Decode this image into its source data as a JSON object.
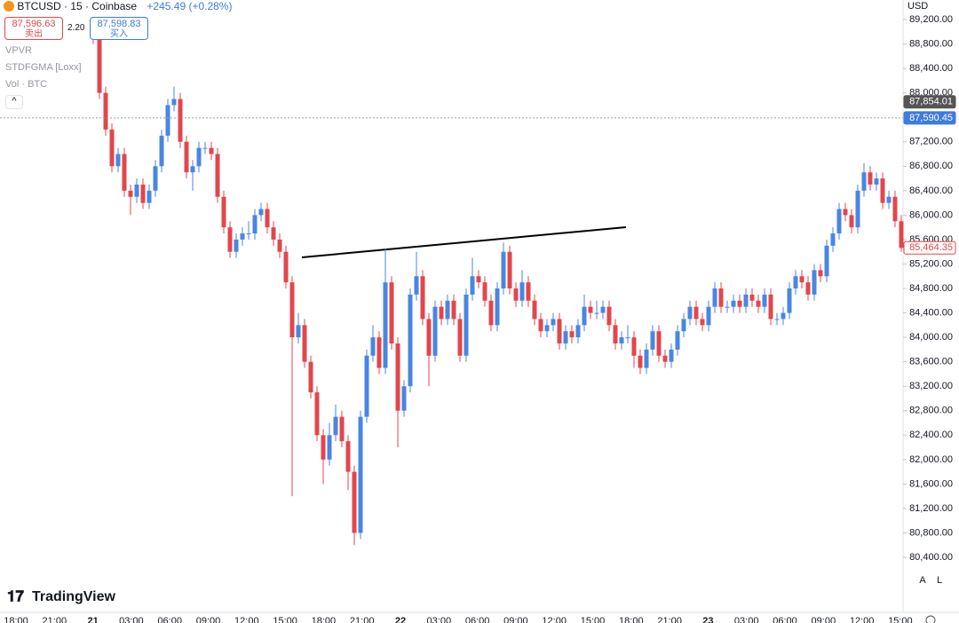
{
  "chart_data": {
    "type": "candlestick",
    "symbol": "BTCUSD · 15 · Coinbase",
    "change": "+245.49 (+0.28%)",
    "sell_price": "87,596.63",
    "sell_label": "卖出",
    "spread": "2.20",
    "buy_price": "87,598.83",
    "buy_label": "买入",
    "indicators": [
      "VPVR",
      "STDFGMA [Loxx]",
      "Vol · BTC"
    ],
    "currency": "USD",
    "brand": "TradingView",
    "scale_buttons": [
      "A",
      "L"
    ],
    "up_color": "#4a86e0",
    "down_color": "#e0474c",
    "categories": [
      "18:00",
      "21:00",
      "21",
      "03:00",
      "06:00",
      "09:00",
      "12:00",
      "15:00",
      "18:00",
      "21:00",
      "22",
      "03:00",
      "06:00",
      "09:00",
      "12:00",
      "15:00",
      "18:00",
      "21:00",
      "23",
      "03:00",
      "06:00",
      "09:00",
      "12:00",
      "15:00"
    ],
    "ylim": [
      79500,
      89520
    ],
    "yticks": [
      {
        "value": 80400,
        "label": "80,400.00"
      },
      {
        "value": 80800,
        "label": "80,800.00"
      },
      {
        "value": 81200,
        "label": "81,200.00"
      },
      {
        "value": 81600,
        "label": "81,600.00"
      },
      {
        "value": 82000,
        "label": "82,000.00"
      },
      {
        "value": 82400,
        "label": "82,400.00"
      },
      {
        "value": 82800,
        "label": "82,800.00"
      },
      {
        "value": 83200,
        "label": "83,200.00"
      },
      {
        "value": 83600,
        "label": "83,600.00"
      },
      {
        "value": 84000,
        "label": "84,000.00"
      },
      {
        "value": 84400,
        "label": "84,400.00"
      },
      {
        "value": 84800,
        "label": "84,800.00"
      },
      {
        "value": 85200,
        "label": "85,200.00"
      },
      {
        "value": 85600,
        "label": "85,600.00"
      },
      {
        "value": 86000,
        "label": "86,000.00"
      },
      {
        "value": 86400,
        "label": "86,400.00"
      },
      {
        "value": 86800,
        "label": "86,800.00"
      },
      {
        "value": 87200,
        "label": "87,200.00"
      },
      {
        "value": 88000,
        "label": "88,000.00"
      },
      {
        "value": 88400,
        "label": "88,400.00"
      },
      {
        "value": 88800,
        "label": "88,800.00"
      },
      {
        "value": 89200,
        "label": "89,200.00"
      }
    ],
    "price_markers": [
      {
        "value": 87854.01,
        "label": "87,854.01",
        "color": "#555555"
      },
      {
        "value": 87590.45,
        "label": "87,590.45",
        "color": "#3d7be0"
      },
      {
        "value": 85464.35,
        "label": "85,464.35",
        "color": "#e0474c"
      }
    ],
    "candles": [
      [
        89100,
        89200,
        88800,
        88900
      ],
      [
        88900,
        89000,
        87900,
        88000
      ],
      [
        88000,
        88100,
        87300,
        87400
      ],
      [
        87400,
        87500,
        86700,
        86800
      ],
      [
        86800,
        87100,
        86700,
        87000
      ],
      [
        87000,
        87100,
        86300,
        86400
      ],
      [
        86400,
        86500,
        86000,
        86300
      ],
      [
        86300,
        86600,
        86200,
        86500
      ],
      [
        86500,
        86600,
        86100,
        86200
      ],
      [
        86200,
        86500,
        86100,
        86400
      ],
      [
        86400,
        86900,
        86300,
        86800
      ],
      [
        86800,
        87400,
        86700,
        87300
      ],
      [
        87300,
        87900,
        87200,
        87800
      ],
      [
        87800,
        88100,
        87700,
        87900
      ],
      [
        87900,
        88000,
        87100,
        87200
      ],
      [
        87200,
        87300,
        86600,
        86700
      ],
      [
        86700,
        86900,
        86400,
        86800
      ],
      [
        86800,
        87200,
        86700,
        87100
      ],
      [
        87100,
        87200,
        87000,
        87100
      ],
      [
        87100,
        87200,
        86900,
        87000
      ],
      [
        87000,
        87100,
        86200,
        86300
      ],
      [
        86300,
        86400,
        85700,
        85800
      ],
      [
        85800,
        85900,
        85300,
        85400
      ],
      [
        85400,
        85700,
        85300,
        85600
      ],
      [
        85600,
        85800,
        85500,
        85700
      ],
      [
        85700,
        85900,
        85600,
        85700
      ],
      [
        85700,
        86100,
        85600,
        86000
      ],
      [
        86000,
        86200,
        85900,
        86100
      ],
      [
        86100,
        86200,
        85700,
        85800
      ],
      [
        85800,
        85900,
        85500,
        85600
      ],
      [
        85600,
        85700,
        85300,
        85400
      ],
      [
        85400,
        85500,
        84800,
        84900
      ],
      [
        84900,
        85000,
        81400,
        84000
      ],
      [
        84000,
        84400,
        83900,
        84200
      ],
      [
        84200,
        84300,
        83500,
        83600
      ],
      [
        83600,
        83700,
        83000,
        83100
      ],
      [
        83100,
        83200,
        82300,
        82400
      ],
      [
        82400,
        82500,
        81600,
        82000
      ],
      [
        82000,
        82600,
        81900,
        82400
      ],
      [
        82400,
        82900,
        82300,
        82700
      ],
      [
        82700,
        82800,
        82200,
        82300
      ],
      [
        82300,
        82400,
        81500,
        81800
      ],
      [
        81800,
        81900,
        80600,
        80800
      ],
      [
        80800,
        82800,
        80700,
        82700
      ],
      [
        82700,
        83800,
        82600,
        83700
      ],
      [
        83700,
        84200,
        83600,
        84000
      ],
      [
        84000,
        84100,
        83400,
        83500
      ],
      [
        83500,
        85450,
        83400,
        84900
      ],
      [
        84900,
        85000,
        83800,
        83900
      ],
      [
        83900,
        84000,
        82200,
        82800
      ],
      [
        82800,
        83300,
        82700,
        83200
      ],
      [
        83200,
        84800,
        83100,
        84700
      ],
      [
        84700,
        85400,
        84600,
        85000
      ],
      [
        85000,
        85100,
        84200,
        84300
      ],
      [
        84300,
        84400,
        83200,
        83700
      ],
      [
        83700,
        84600,
        83600,
        84500
      ],
      [
        84500,
        84600,
        84200,
        84300
      ],
      [
        84300,
        84700,
        84200,
        84600
      ],
      [
        84600,
        84700,
        84200,
        84300
      ],
      [
        84300,
        84400,
        83600,
        83700
      ],
      [
        83700,
        84800,
        83600,
        84700
      ],
      [
        84700,
        85300,
        84600,
        85000
      ],
      [
        85000,
        85100,
        84800,
        84900
      ],
      [
        84900,
        85000,
        84500,
        84600
      ],
      [
        84600,
        84700,
        84100,
        84200
      ],
      [
        84200,
        84900,
        84100,
        84800
      ],
      [
        84800,
        85550,
        84700,
        85400
      ],
      [
        85400,
        85500,
        84700,
        84800
      ],
      [
        84800,
        84900,
        84500,
        84600
      ],
      [
        84600,
        85100,
        84500,
        84900
      ],
      [
        84900,
        85000,
        84500,
        84600
      ],
      [
        84600,
        84700,
        84200,
        84300
      ],
      [
        84300,
        84400,
        84000,
        84100
      ],
      [
        84100,
        84300,
        84000,
        84200
      ],
      [
        84200,
        84400,
        84100,
        84300
      ],
      [
        84300,
        84400,
        83800,
        83900
      ],
      [
        83900,
        84200,
        83800,
        84100
      ],
      [
        84100,
        84200,
        83900,
        84000
      ],
      [
        84000,
        84300,
        83900,
        84200
      ],
      [
        84200,
        84700,
        84100,
        84500
      ],
      [
        84500,
        84600,
        84300,
        84400
      ],
      [
        84400,
        84600,
        84300,
        84400
      ],
      [
        84400,
        84600,
        84300,
        84500
      ],
      [
        84500,
        84600,
        84100,
        84200
      ],
      [
        84200,
        84300,
        83800,
        83900
      ],
      [
        83900,
        84100,
        83800,
        84000
      ],
      [
        84000,
        84200,
        83900,
        84000
      ],
      [
        84000,
        84100,
        83500,
        83700
      ],
      [
        83700,
        83800,
        83400,
        83500
      ],
      [
        83500,
        83900,
        83400,
        83800
      ],
      [
        83800,
        84200,
        83700,
        84100
      ],
      [
        84100,
        84200,
        83600,
        83700
      ],
      [
        83700,
        83800,
        83500,
        83600
      ],
      [
        83600,
        83900,
        83500,
        83800
      ],
      [
        83800,
        84200,
        83700,
        84100
      ],
      [
        84100,
        84400,
        84000,
        84300
      ],
      [
        84300,
        84600,
        84200,
        84500
      ],
      [
        84500,
        84600,
        84200,
        84300
      ],
      [
        84300,
        84400,
        84100,
        84200
      ],
      [
        84200,
        84600,
        84100,
        84500
      ],
      [
        84500,
        84900,
        84400,
        84800
      ],
      [
        84800,
        84900,
        84400,
        84500
      ],
      [
        84500,
        84600,
        84400,
        84500
      ],
      [
        84500,
        84700,
        84400,
        84600
      ],
      [
        84600,
        84700,
        84400,
        84500
      ],
      [
        84500,
        84800,
        84400,
        84700
      ],
      [
        84700,
        84800,
        84500,
        84600
      ],
      [
        84600,
        84700,
        84400,
        84500
      ],
      [
        84500,
        84800,
        84400,
        84700
      ],
      [
        84700,
        84800,
        84200,
        84300
      ],
      [
        84300,
        84400,
        84200,
        84300
      ],
      [
        84300,
        84500,
        84200,
        84400
      ],
      [
        84400,
        84900,
        84300,
        84800
      ],
      [
        84800,
        85100,
        84700,
        85000
      ],
      [
        85000,
        85100,
        84800,
        84900
      ],
      [
        84900,
        85000,
        84600,
        84700
      ],
      [
        84700,
        85200,
        84600,
        85100
      ],
      [
        85100,
        85200,
        84900,
        85000
      ],
      [
        85000,
        85600,
        84900,
        85500
      ],
      [
        85500,
        85800,
        85400,
        85700
      ],
      [
        85700,
        86200,
        85600,
        86100
      ],
      [
        86100,
        86200,
        85900,
        86000
      ],
      [
        86000,
        86100,
        85700,
        85800
      ],
      [
        85800,
        86500,
        85700,
        86400
      ],
      [
        86400,
        86850,
        86300,
        86700
      ],
      [
        86700,
        86800,
        86400,
        86500
      ],
      [
        86500,
        86700,
        86400,
        86600
      ],
      [
        86600,
        86700,
        86100,
        86200
      ],
      [
        86200,
        86400,
        86100,
        86300
      ],
      [
        86300,
        86400,
        85800,
        85900
      ],
      [
        85900,
        86000,
        85400,
        85464
      ]
    ]
  }
}
